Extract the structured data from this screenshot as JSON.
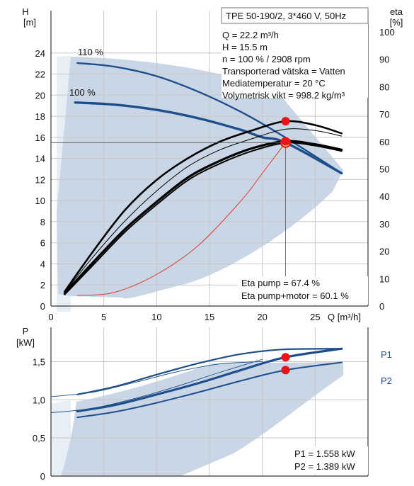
{
  "chart_data": [
    {
      "type": "line",
      "title": "TPE 50-190/2, 3*460 V, 50Hz",
      "xlabel": "Q [m³/h]",
      "ylabel": [
        "H",
        "[m]"
      ],
      "y2label": [
        "eta",
        "[%]"
      ],
      "xlim": [
        0,
        30
      ],
      "ylim": [
        0,
        26
      ],
      "y2lim": [
        0,
        100
      ],
      "grid": true,
      "x_ticks": [
        0,
        5,
        10,
        15,
        20,
        25
      ],
      "y_ticks": [
        0,
        2,
        4,
        6,
        8,
        10,
        12,
        14,
        16,
        18,
        20,
        22,
        24
      ],
      "y2_ticks": [
        0,
        10,
        20,
        30,
        40,
        50,
        60,
        70,
        80,
        90,
        100
      ],
      "info_lines": [
        "Q = 22.2 m³/h",
        "H = 15.5 m",
        "n = 100 % / 2908 rpm",
        "Transporterad vätska = Vatten",
        "Mediatemperatur = 20 °C",
        "Volymetrisk vikt = 998.2 kg/m³"
      ],
      "series": [
        {
          "name": "110 %",
          "role": "head-max",
          "color": "#1f4e8c",
          "x": [
            2.5,
            6,
            10,
            14,
            18,
            22,
            27.5
          ],
          "y": [
            23.05,
            22.7,
            21.8,
            20.3,
            18.4,
            16.1,
            12.6
          ]
        },
        {
          "name": "100 %",
          "role": "head",
          "color": "#1f4e8c",
          "x": [
            2.3,
            6,
            10,
            14,
            18,
            20,
            22.2,
            27.5
          ],
          "y": [
            19.3,
            19.1,
            18.6,
            17.8,
            16.7,
            16.0,
            15.5,
            12.6
          ]
        },
        {
          "role": "eta-pump",
          "color": "#000000",
          "x": [
            1.3,
            4,
            7,
            10,
            13,
            16,
            19,
            22.2,
            25,
            27.5
          ],
          "y": [
            5.3,
            20,
            35,
            46,
            54,
            60,
            64,
            67.4,
            66,
            63
          ]
        },
        {
          "role": "eta-pump-thin",
          "color": "#000000",
          "x": [
            1.3,
            4,
            7,
            10,
            13,
            16,
            19,
            22.2,
            25,
            27.5
          ],
          "y": [
            5,
            18,
            31,
            42,
            51,
            57,
            61,
            64.5,
            64,
            62
          ]
        },
        {
          "role": "eta-pump-motor",
          "color": "#000000",
          "x": [
            1.3,
            4,
            7,
            10,
            13,
            16,
            19,
            22.2,
            25,
            27.5
          ],
          "y": [
            4.6,
            16,
            28,
            38,
            47,
            53,
            57.5,
            60.1,
            59,
            57
          ]
        },
        {
          "role": "eta-pump-motor-2",
          "color": "#000000",
          "x": [
            1.3,
            4,
            7,
            10,
            13,
            16,
            19,
            22.2,
            25,
            27.5
          ],
          "y": [
            4.2,
            15,
            27,
            37,
            46,
            52,
            56.5,
            59.5,
            58.5,
            56.5
          ]
        },
        {
          "role": "system-curve",
          "color": "#e03b2f",
          "x": [
            2.5,
            6,
            10,
            14,
            18,
            20,
            22.2
          ],
          "y": [
            1.0,
            1.3,
            3.0,
            5.8,
            10.0,
            12.6,
            15.5
          ]
        }
      ],
      "operating_point": {
        "x": 22.2,
        "y": 15.5
      },
      "eta_points": [
        {
          "x": 22.2,
          "eta": 67.4
        },
        {
          "x": 22.2,
          "eta": 60.1
        }
      ],
      "annotations": [
        "Eta pump = 67.4 %",
        "Eta pump+motor = 60.1 %"
      ]
    },
    {
      "type": "line",
      "ylabel": [
        "P",
        "[kW]"
      ],
      "xlim": [
        0,
        30
      ],
      "ylim": [
        0,
        1.95
      ],
      "grid": true,
      "y_ticks": [
        0,
        0.5,
        1.0,
        1.5
      ],
      "y_tick_labels": [
        "0",
        "0,5",
        "1,0",
        "1,5"
      ],
      "series": [
        {
          "name": "P1",
          "role": "p1-max",
          "color": "#1f4e8c",
          "x": [
            2.5,
            6,
            10,
            14,
            18,
            22,
            27.5
          ],
          "y": [
            1.07,
            1.17,
            1.33,
            1.48,
            1.6,
            1.66,
            1.67
          ]
        },
        {
          "name": "P1",
          "role": "p1",
          "color": "#1f4e8c",
          "x": [
            2.5,
            6,
            10,
            14,
            18,
            22.2,
            27.5
          ],
          "y": [
            0.85,
            0.93,
            1.07,
            1.22,
            1.39,
            1.558,
            1.67
          ]
        },
        {
          "name": "P2",
          "role": "p2",
          "color": "#1f4e8c",
          "x": [
            2.5,
            6,
            10,
            14,
            18,
            22.2,
            27.5
          ],
          "y": [
            0.77,
            0.84,
            0.96,
            1.1,
            1.25,
            1.389,
            1.49
          ]
        },
        {
          "role": "thin-1",
          "color": "#1f4e8c",
          "x": [
            0,
            4,
            8,
            12,
            16,
            20
          ],
          "y": [
            1.04,
            1.1,
            1.23,
            1.37,
            1.47,
            1.5
          ]
        },
        {
          "role": "thin-2",
          "color": "#1f4e8c",
          "x": [
            0,
            4,
            8,
            12,
            16,
            20
          ],
          "y": [
            0.83,
            0.89,
            1.02,
            1.18,
            1.36,
            1.53
          ]
        }
      ],
      "legend": [
        "P1",
        "P2"
      ],
      "points": [
        {
          "x": 22.2,
          "y": 1.558
        },
        {
          "x": 22.2,
          "y": 1.389
        }
      ],
      "annotations": [
        "P1 = 1.558 kW",
        "P2 = 1.389 kW"
      ]
    }
  ],
  "colors": {
    "curve": "#1f4e8c",
    "area": "#c9d6e5",
    "grid": "#c8c8c8",
    "marker": "#e8141a",
    "system": "#e03b2f"
  }
}
